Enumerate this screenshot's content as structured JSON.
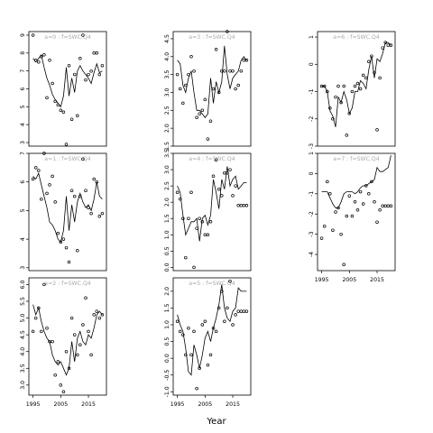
{
  "xlabel": "Year",
  "x_tick_labels": [
    "1995",
    "2005",
    "2015"
  ],
  "title_color": "#aaaaaa",
  "line_color": "#000000",
  "point_color": "#000000",
  "chart_data": [
    {
      "type": "line+scatter",
      "title": "a=0 : f=SWC.Q4",
      "xlim": [
        1993.5,
        2021.5
      ],
      "ylim": [
        2.8,
        9.2
      ],
      "yticks": [
        3,
        4,
        5,
        6,
        7,
        8,
        9
      ],
      "x": [
        1995,
        1996,
        1997,
        1998,
        1999,
        2000,
        2001,
        2002,
        2003,
        2004,
        2005,
        2006,
        2007,
        2008,
        2009,
        2010,
        2011,
        2012,
        2013,
        2014,
        2015,
        2016,
        2017,
        2018,
        2019,
        2020
      ],
      "line": [
        7.7,
        7.5,
        7.7,
        7.9,
        7.2,
        6.6,
        6.2,
        5.7,
        5.4,
        5.2,
        5.0,
        5.6,
        7.2,
        5.6,
        6.6,
        5.8,
        7.0,
        7.3,
        7.0,
        6.8,
        6.6,
        6.3,
        6.9,
        7.4,
        6.9,
        7.0
      ],
      "points": [
        9.0,
        7.6,
        7.5,
        7.8,
        7.9,
        5.5,
        7.6,
        6.3,
        5.3,
        5.1,
        4.8,
        4.7,
        2.9,
        7.3,
        4.3,
        6.8,
        4.5,
        7.7,
        9.0,
        6.5,
        6.8,
        7.0,
        8.0,
        8.0,
        6.8,
        7.3
      ]
    },
    {
      "type": "line+scatter",
      "title": "a=1 : f=SWC.Q4",
      "xlim": [
        1993.5,
        2021.5
      ],
      "ylim": [
        2.9,
        7.0
      ],
      "yticks": [
        3,
        4,
        5,
        6,
        7
      ],
      "x": [
        1995,
        1996,
        1997,
        1998,
        1999,
        2000,
        2001,
        2002,
        2003,
        2004,
        2005,
        2006,
        2007,
        2008,
        2009,
        2010,
        2011,
        2012,
        2013,
        2014,
        2015,
        2016,
        2017,
        2018,
        2019,
        2020
      ],
      "line": [
        6.2,
        6.1,
        6.3,
        5.9,
        5.5,
        5.1,
        4.6,
        4.5,
        4.3,
        4.0,
        3.9,
        4.3,
        5.5,
        4.3,
        5.2,
        4.6,
        5.3,
        5.6,
        5.3,
        5.1,
        5.2,
        5.0,
        5.4,
        6.0,
        5.5,
        5.4
      ],
      "points": [
        6.1,
        6.5,
        6.4,
        5.4,
        7.0,
        5.6,
        5.9,
        6.2,
        5.3,
        4.2,
        3.9,
        4.0,
        3.7,
        3.2,
        5.7,
        5.5,
        3.6,
        5.5,
        6.8,
        5.7,
        5.1,
        4.9,
        6.1,
        6.0,
        4.8,
        4.9
      ]
    },
    {
      "type": "line+scatter",
      "title": "a=2 : f=SWC.Q4",
      "xlim": [
        1993.5,
        2021.5
      ],
      "ylim": [
        2.7,
        6.2
      ],
      "yticks": [
        3.0,
        3.5,
        4.0,
        4.5,
        5.0,
        5.5,
        6.0
      ],
      "x": [
        1995,
        1996,
        1997,
        1998,
        1999,
        2000,
        2001,
        2002,
        2003,
        2004,
        2005,
        2006,
        2007,
        2008,
        2009,
        2010,
        2011,
        2012,
        2013,
        2014,
        2015,
        2016,
        2017,
        2018,
        2019,
        2020
      ],
      "line": [
        5.4,
        5.1,
        5.3,
        4.9,
        4.6,
        4.4,
        4.3,
        3.9,
        3.7,
        3.6,
        3.7,
        3.5,
        3.3,
        3.5,
        4.3,
        3.7,
        4.4,
        4.6,
        4.3,
        4.2,
        4.5,
        4.4,
        4.7,
        5.1,
        5.2,
        5.1
      ],
      "points": [
        4.6,
        5.0,
        5.3,
        4.6,
        6.0,
        4.7,
        4.3,
        4.3,
        3.3,
        3.7,
        3.0,
        2.8,
        4.0,
        3.5,
        5.0,
        4.5,
        3.9,
        4.2,
        4.8,
        5.6,
        4.6,
        3.9,
        5.1,
        5.2,
        5.0,
        5.1
      ]
    },
    {
      "type": "line+scatter",
      "title": "a=3 : f=SWC.Q4",
      "xlim": [
        1993.5,
        2021.5
      ],
      "ylim": [
        1.5,
        4.7
      ],
      "yticks": [
        1.5,
        2.0,
        2.5,
        3.0,
        3.5,
        4.0,
        4.5
      ],
      "x": [
        1995,
        1996,
        1997,
        1998,
        1999,
        2000,
        2001,
        2002,
        2003,
        2004,
        2005,
        2006,
        2007,
        2008,
        2009,
        2010,
        2011,
        2012,
        2013,
        2014,
        2015,
        2016,
        2017,
        2018,
        2019,
        2020
      ],
      "line": [
        3.9,
        3.8,
        3.2,
        3.0,
        3.4,
        3.6,
        3.0,
        2.5,
        2.5,
        2.4,
        2.3,
        2.4,
        3.4,
        2.7,
        3.3,
        3.0,
        3.3,
        4.3,
        3.5,
        3.1,
        3.4,
        3.5,
        3.6,
        3.9,
        4.0,
        3.9
      ],
      "points": [
        3.5,
        3.1,
        2.7,
        3.2,
        3.5,
        4.0,
        3.6,
        2.3,
        2.4,
        2.5,
        2.8,
        1.7,
        2.2,
        3.1,
        4.2,
        3.0,
        3.6,
        3.6,
        4.7,
        3.6,
        3.6,
        3.1,
        3.2,
        3.6,
        3.9,
        3.9
      ]
    },
    {
      "type": "line+scatter",
      "title": "a=4 : f=SWC.Q4",
      "xlim": [
        1993.5,
        2021.5
      ],
      "ylim": [
        -0.1,
        3.5
      ],
      "yticks": [
        0.0,
        0.5,
        1.0,
        1.5,
        2.0,
        2.5,
        3.0,
        3.5
      ],
      "x": [
        1995,
        1996,
        1997,
        1998,
        1999,
        2000,
        2001,
        2002,
        2003,
        2004,
        2005,
        2006,
        2007,
        2008,
        2009,
        2010,
        2011,
        2012,
        2013,
        2014,
        2015,
        2016,
        2017,
        2018,
        2019,
        2020
      ],
      "line": [
        2.5,
        2.3,
        1.6,
        1.0,
        1.2,
        1.4,
        1.4,
        1.5,
        0.8,
        1.5,
        1.6,
        1.3,
        1.6,
        2.7,
        2.3,
        1.8,
        2.7,
        2.4,
        3.1,
        2.5,
        2.7,
        2.8,
        2.4,
        2.5,
        2.6,
        2.6
      ],
      "points": [
        2.3,
        2.1,
        1.5,
        0.3,
        1.5,
        2.3,
        0.0,
        1.2,
        1.5,
        1.4,
        1.0,
        1.0,
        1.4,
        2.8,
        3.3,
        2.4,
        2.2,
        2.9,
        2.9,
        3.0,
        2.2,
        2.5,
        1.9,
        1.9,
        1.9,
        1.9
      ]
    },
    {
      "type": "line+scatter",
      "title": "a=5 : f=SWC.Q4",
      "xlim": [
        1993.5,
        2021.5
      ],
      "ylim": [
        -1.1,
        2.4
      ],
      "yticks": [
        -1.0,
        -0.5,
        0.0,
        0.5,
        1.0,
        1.5,
        2.0
      ],
      "x": [
        1995,
        1996,
        1997,
        1998,
        1999,
        2000,
        2001,
        2002,
        2003,
        2004,
        2005,
        2006,
        2007,
        2008,
        2009,
        2010,
        2011,
        2012,
        2013,
        2014,
        2015,
        2016,
        2017,
        2018,
        2019,
        2020
      ],
      "line": [
        1.3,
        1.0,
        0.8,
        0.3,
        -0.4,
        -0.5,
        0.4,
        0.1,
        -0.3,
        0.1,
        0.6,
        0.8,
        0.5,
        0.9,
        1.2,
        1.6,
        2.2,
        1.5,
        1.2,
        1.1,
        1.4,
        1.5,
        2.1,
        2.0,
        2.0,
        2.0
      ],
      "points": [
        1.1,
        0.8,
        0.7,
        0.1,
        0.9,
        0.1,
        0.8,
        -0.9,
        -0.3,
        1.0,
        1.1,
        -0.2,
        0.1,
        0.9,
        0.8,
        1.5,
        2.0,
        1.1,
        1.5,
        2.3,
        1.0,
        1.3,
        1.4,
        1.4,
        1.4,
        1.4
      ]
    },
    {
      "type": "line+scatter",
      "title": "a=6 : f=SWC.Q4",
      "xlim": [
        1993.5,
        2021.5
      ],
      "ylim": [
        -3.0,
        1.2
      ],
      "yticks": [
        -3,
        -2,
        -1,
        0,
        1
      ],
      "x": [
        1995,
        1996,
        1997,
        1998,
        1999,
        2000,
        2001,
        2002,
        2003,
        2004,
        2005,
        2006,
        2007,
        2008,
        2009,
        2010,
        2011,
        2012,
        2013,
        2014,
        2015,
        2016,
        2017,
        2018,
        2019,
        2020
      ],
      "line": [
        -0.8,
        -0.8,
        -1.0,
        -1.7,
        -1.9,
        -2.3,
        -1.2,
        -1.4,
        -1.0,
        -1.3,
        -1.8,
        -1.6,
        -1.0,
        -1.0,
        -0.6,
        -0.7,
        -0.9,
        -0.2,
        0.3,
        -0.5,
        0.2,
        0.1,
        0.4,
        0.8,
        0.8,
        0.7
      ],
      "points": [
        -0.8,
        -0.8,
        -1.0,
        -1.6,
        -2.0,
        -1.2,
        -0.8,
        -1.4,
        -0.8,
        -2.6,
        -1.8,
        -1.0,
        -0.8,
        -0.7,
        -0.9,
        -0.4,
        -0.5,
        0.1,
        0.3,
        -0.3,
        -2.4,
        -0.5,
        0.6,
        0.8,
        0.7,
        0.7
      ]
    },
    {
      "type": "line+scatter",
      "title": "a=7 : f=SWC.Q4",
      "xlim": [
        1993.5,
        2021.5
      ],
      "ylim": [
        -4.8,
        1.0
      ],
      "yticks": [
        -4,
        -3,
        -2,
        -1,
        0,
        1
      ],
      "x": [
        1995,
        1996,
        1997,
        1998,
        1999,
        2000,
        2001,
        2002,
        2003,
        2004,
        2005,
        2006,
        2007,
        2008,
        2009,
        2010,
        2011,
        2012,
        2013,
        2014,
        2015,
        2016,
        2017,
        2018,
        2019,
        2020
      ],
      "line": [
        -0.9,
        -0.9,
        -0.9,
        -1.2,
        -1.5,
        -1.7,
        -1.7,
        -1.4,
        -1.0,
        -0.9,
        -0.9,
        -0.9,
        -1.0,
        -0.9,
        -0.7,
        -0.6,
        -0.6,
        -0.5,
        -0.4,
        -0.3,
        0.3,
        0.1,
        0.1,
        0.2,
        0.3,
        0.9
      ],
      "points": [
        -3.2,
        -2.6,
        -0.4,
        -1.0,
        -2.8,
        -1.9,
        -1.7,
        -3.0,
        -4.5,
        -2.1,
        -1.1,
        -2.1,
        -1.4,
        -1.8,
        -0.9,
        -1.5,
        -0.6,
        -1.0,
        -0.4,
        -1.4,
        -2.4,
        -1.8,
        -1.6,
        -1.6,
        -1.6,
        -1.6
      ]
    }
  ]
}
